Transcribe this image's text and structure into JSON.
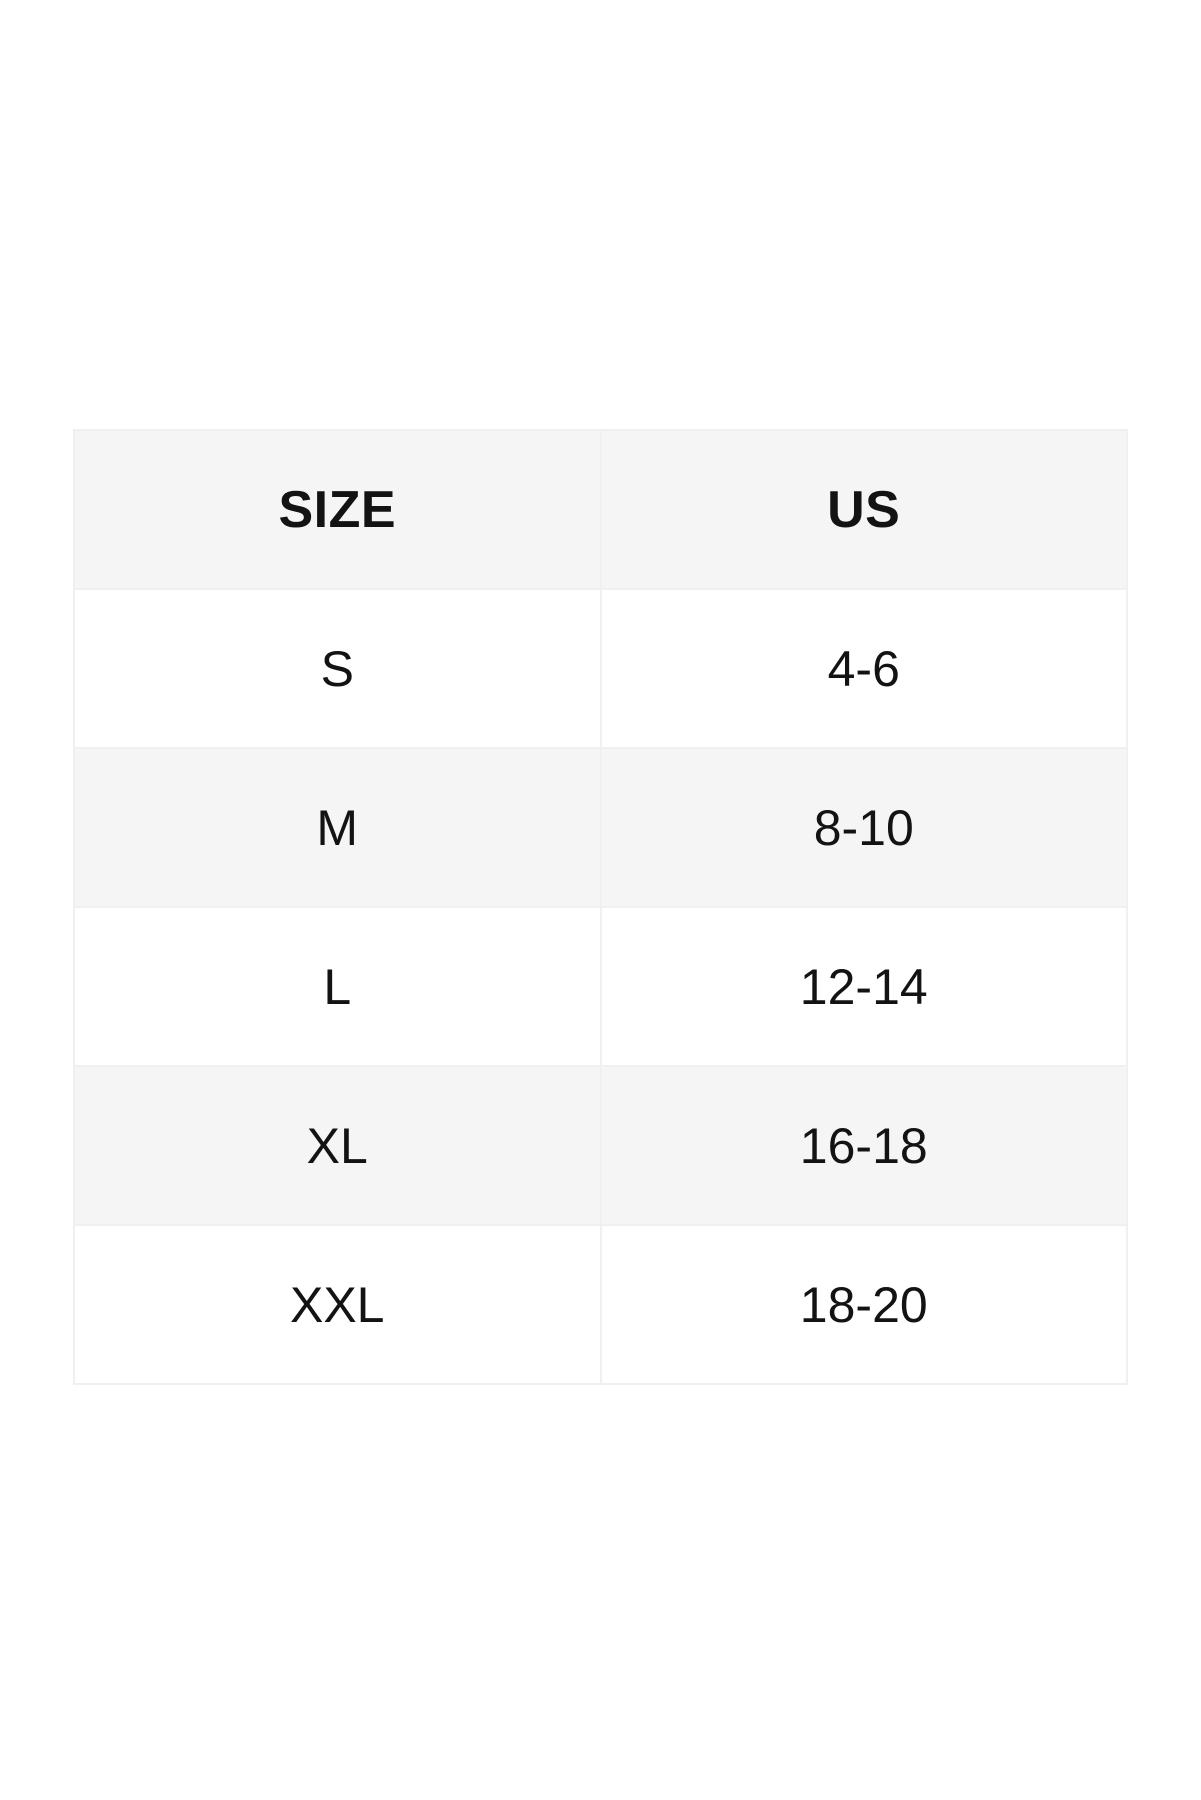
{
  "page": {
    "background_color": "#ffffff",
    "text_color": "#131313",
    "stripe_color": "#f5f5f6",
    "border_color": "#f0f0f1"
  },
  "size_chart": {
    "headers": {
      "size": "SIZE",
      "us": "US"
    },
    "rows": [
      {
        "size": "S",
        "us": "4-6"
      },
      {
        "size": "M",
        "us": "8-10"
      },
      {
        "size": "L",
        "us": "12-14"
      },
      {
        "size": "XL",
        "us": "16-18"
      },
      {
        "size": "XXL",
        "us": "18-20"
      }
    ]
  }
}
